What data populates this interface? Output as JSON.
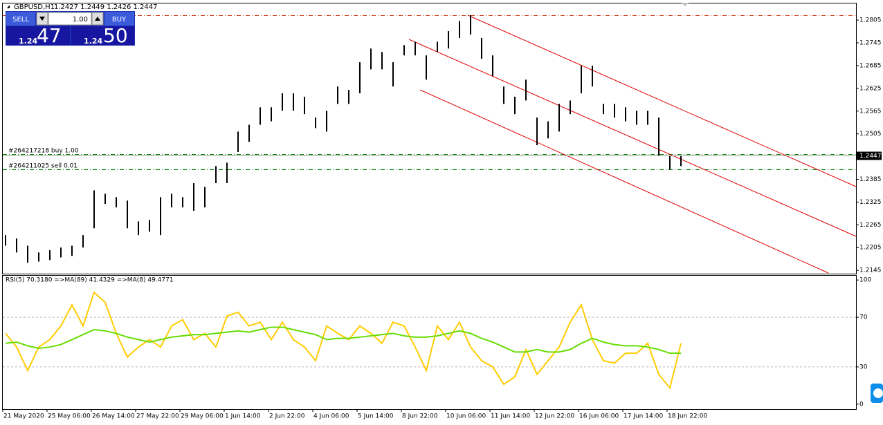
{
  "chart_data": [
    {
      "type": "hlbar",
      "title": "GBPUSD,H1",
      "subtitle": "1.2427 1.2449 1.2426 1.2447",
      "categories": [
        "21 May 2020",
        null,
        null,
        null,
        "25 May 06:00",
        null,
        null,
        null,
        "26 May 14:00",
        null,
        null,
        null,
        "27 May 22:00",
        null,
        null,
        null,
        "29 May 06:00",
        null,
        null,
        null,
        "1 Jun 14:00",
        null,
        null,
        null,
        "2 Jun 22:00",
        null,
        null,
        null,
        "4 Jun 06:00",
        null,
        null,
        null,
        "5 Jun 14:00",
        null,
        null,
        null,
        "8 Jun 22:00",
        null,
        null,
        null,
        "10 Jun 06:00",
        null,
        null,
        null,
        "11 Jun 14:00",
        null,
        null,
        null,
        "12 Jun 22:00",
        null,
        null,
        null,
        "16 Jun 06:00",
        null,
        null,
        null,
        "17 Jun 14:00",
        null,
        null,
        null,
        "18 Jun 22:00",
        null
      ],
      "high": [
        1.2238,
        1.2229,
        1.221,
        1.2192,
        1.2198,
        1.2205,
        1.221,
        1.2238,
        1.2356,
        1.2347,
        1.2338,
        1.2329,
        1.2274,
        1.2278,
        1.2338,
        1.2347,
        1.2338,
        1.2375,
        1.2365,
        1.242,
        1.2429,
        1.2511,
        1.2529,
        1.2575,
        1.2575,
        1.2612,
        1.2612,
        1.2603,
        1.2548,
        1.2566,
        1.263,
        1.2621,
        1.2694,
        1.273,
        1.2721,
        1.2694,
        1.2739,
        1.2748,
        1.2712,
        1.2748,
        1.2776,
        1.2803,
        1.2818,
        1.2758,
        1.2712,
        1.263,
        1.2603,
        1.2648,
        1.2548,
        1.2538,
        1.2584,
        1.2593,
        1.2685,
        1.2685,
        1.2584,
        1.2584,
        1.2575,
        1.2566,
        1.2566,
        1.2548,
        1.2448,
        1.2448
      ],
      "low": [
        1.221,
        1.2192,
        1.2165,
        1.2168,
        1.2172,
        1.2179,
        1.2183,
        1.2205,
        1.2256,
        1.232,
        1.2311,
        1.2256,
        1.2238,
        1.2247,
        1.2238,
        1.2311,
        1.2311,
        1.2302,
        1.2311,
        1.2375,
        1.2375,
        1.2457,
        1.2484,
        1.2529,
        1.2538,
        1.2566,
        1.2566,
        1.2557,
        1.252,
        1.2511,
        1.2584,
        1.2584,
        1.2612,
        1.2675,
        1.2675,
        1.263,
        1.2712,
        1.2712,
        1.2648,
        1.2721,
        1.273,
        1.2758,
        1.2767,
        1.2703,
        1.2657,
        1.2584,
        1.2557,
        1.2593,
        1.2475,
        1.2493,
        1.2511,
        1.2557,
        1.2612,
        1.263,
        1.2557,
        1.2548,
        1.2538,
        1.2529,
        1.2529,
        1.2448,
        1.2411,
        1.242
      ],
      "color": "#000000",
      "current_price": 1.2447,
      "ylim": [
        1.2138,
        1.2849
      ],
      "yticks": [
        1.2805,
        1.2745,
        1.2685,
        1.2625,
        1.2565,
        1.2505,
        1.2385,
        1.2325,
        1.2265,
        1.2205,
        1.2145
      ],
      "orders": [
        "#264217218 buy 1.00",
        "#264211025 sell 0.01"
      ],
      "trade_panel": {
        "sell": "SELL",
        "buy": "BUY",
        "lot": "1.00",
        "sell_big": "1.24",
        "sell_pips": "47",
        "buy_big": "1.24",
        "buy_pips": "50"
      }
    },
    {
      "type": "line",
      "title": "RSI(5) 70.3180  =>MA(89) 41.4329  =>MA(8) 49.4771",
      "series": [
        {
          "color": "#ffcc00",
          "values": [
            57,
            46,
            27,
            46,
            52,
            63,
            80,
            63,
            90,
            82,
            57,
            38,
            46,
            52,
            46,
            63,
            68,
            52,
            57,
            46,
            71,
            74,
            63,
            66,
            52,
            66,
            52,
            46,
            35,
            63,
            57,
            52,
            63,
            57,
            49,
            66,
            63,
            46,
            27,
            63,
            52,
            66,
            46,
            35,
            30,
            16,
            22,
            44,
            24,
            35,
            46,
            66,
            80,
            52,
            35,
            33,
            41,
            41,
            49,
            24,
            13,
            49
          ]
        },
        {
          "color": "#66dd00",
          "values": [
            49,
            50,
            47,
            45,
            46,
            48,
            52,
            56,
            60,
            59,
            57,
            54,
            52,
            50,
            52,
            54,
            55,
            56,
            56,
            57,
            58,
            59,
            58,
            60,
            62,
            62,
            60,
            58,
            56,
            52,
            53,
            53,
            54,
            55,
            56,
            57,
            55,
            54,
            54,
            55,
            57,
            59,
            57,
            53,
            50,
            46,
            42,
            42,
            44,
            42,
            42,
            44,
            49,
            53,
            50,
            48,
            47,
            47,
            46,
            44,
            41,
            41
          ]
        }
      ],
      "ylim": [
        -4,
        104
      ],
      "yticks": [
        100,
        70,
        30,
        0
      ]
    }
  ]
}
